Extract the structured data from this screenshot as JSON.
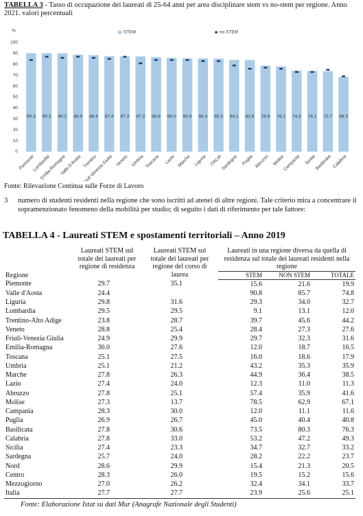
{
  "chart_data": {
    "type": "bar",
    "title_label": "TABELLA 3",
    "title": "- Tasso di occupazione dei laureati di 25-64 anni per area disciplinare stem vs no-stem per regione. Anno 2021. valori percentuali",
    "ylabel": "%",
    "categories": [
      "Piemonte",
      "Lombardia",
      "Emilia Romagna",
      "Valle D'Aosta",
      "Trentino",
      "Friuli Venezia Giulia",
      "Veneto",
      "Umbria",
      "Toscana",
      "Lazio",
      "Marche",
      "Liguria",
      "ITALIA",
      "Sardegna",
      "Puglia",
      "Abruzzo",
      "Molise",
      "Campania",
      "Sicilia",
      "Basilicata",
      "Calabria"
    ],
    "series": [
      {
        "name": "STEM",
        "color": "#a9cbe8",
        "mark": "bar",
        "values": [
          90.3,
          90.3,
          90.2,
          88.9,
          88.4,
          87.4,
          87.3,
          87.3,
          86.6,
          86.0,
          85.5,
          85.4,
          85.3,
          84.1,
          83.9,
          78.9,
          78.2,
          74.3,
          74.1,
          73.7,
          68.5
        ],
        "value_labels": [
          "90.3",
          "90.3",
          "90.2",
          "88.9",
          "88.4",
          "87.4",
          "87.3",
          "87.3",
          "86.6",
          "86.0",
          "85.5",
          "85.4",
          "85.3",
          "84.1",
          "83.9",
          "78.9",
          "78.2",
          "74.3",
          "74.1",
          "73.7",
          "68.5"
        ]
      },
      {
        "name": "no STEM",
        "color": "#1f3864",
        "mark": "dot",
        "values": [
          84,
          87,
          86,
          87,
          86,
          85,
          87,
          81,
          84,
          84,
          84,
          83,
          83,
          79,
          76,
          77,
          76,
          73,
          73,
          75,
          69
        ]
      }
    ],
    "ylim": [
      0,
      100
    ],
    "yticks": [
      0,
      10,
      20,
      30,
      40,
      50,
      60,
      70,
      80,
      90,
      100
    ],
    "grid": false
  },
  "chart_source": "Fonte: Rilevazione Continua sulle Forze di Lavoro",
  "footnote": {
    "marker": "3",
    "text": "numero di studenti residenti nella regione che sono iscritti ad atenei di altre regioni. Tale criterio mira a concentrare il sopramenzionato fenomeno della mobilità per studio; di seguito i dati di riferimento per tale fattore:"
  },
  "table": {
    "title": "TABELLA 4 - Laureati STEM e spostamenti territoriali – Anno 2019",
    "header": [
      "Regione",
      "Laureati STEM sul totale dei laureati per regione di residenza",
      "Laureati STEM sul totale dei laureati per regione del corso di laurea",
      "Laureati in una regione diversa da quella di residenza sul totale dei laureati residenti nella regione"
    ],
    "subheader": [
      "STEM",
      "NON STEM",
      "TOTALE"
    ],
    "rows": [
      [
        "Piemonte",
        "29.7",
        "35.1",
        "15.6",
        "21.6",
        "19.9"
      ],
      [
        "Valle d'Aosta",
        "24.4",
        "",
        "90.8",
        "85.7",
        "74.8"
      ],
      [
        "Liguria",
        "29.8",
        "31.6",
        "29.3",
        "34.0",
        "32.7"
      ],
      [
        "Lombardia",
        "29.5",
        "29.5",
        "9.1",
        "13.1",
        "12.0"
      ],
      [
        "Trentino-Alto Adige",
        "23.8",
        "28.7",
        "39.7",
        "45.6",
        "44.2"
      ],
      [
        "Veneto",
        "28.8",
        "25.4",
        "28.4",
        "27.3",
        "27.6"
      ],
      [
        "Friuli-Venezia Giulia",
        "24.9",
        "29.9",
        "29.7",
        "32.3",
        "31.6"
      ],
      [
        "Emilia-Romagna",
        "30.0",
        "27.6",
        "12.0",
        "18.7",
        "16.5"
      ],
      [
        "Toscana",
        "25.1",
        "27.5",
        "16.0",
        "18.6",
        "17.9"
      ],
      [
        "Umbria",
        "25.1",
        "21.2",
        "43.2",
        "35.3",
        "35.9"
      ],
      [
        "Marche",
        "27.8",
        "26.3",
        "44.9",
        "36.4",
        "38.5"
      ],
      [
        "Lazio",
        "27.4",
        "24.0",
        "12.3",
        "11.0",
        "11.3"
      ],
      [
        "Abruzzo",
        "27.8",
        "25.1",
        "57.4",
        "35.9",
        "41.6"
      ],
      [
        "Molise",
        "27.3",
        "13.7",
        "78.5",
        "62.9",
        "67.1"
      ],
      [
        "Campania",
        "28.3",
        "30.0",
        "12.0",
        "11.1",
        "11.6"
      ],
      [
        "Puglia",
        "26.9",
        "26.7",
        "45.0",
        "40.4",
        "40.8"
      ],
      [
        "Basilicata",
        "27.8",
        "30.6",
        "73.5",
        "80.3",
        "76.3"
      ],
      [
        "Calabria",
        "27.8",
        "33.0",
        "53.2",
        "47.2",
        "49.3"
      ],
      [
        "Sicilia",
        "27.4",
        "23.3",
        "34.7",
        "32.7",
        "33.2"
      ],
      [
        "Sardegna",
        "25.7",
        "24.0",
        "28.2",
        "22.2",
        "23.7"
      ],
      [
        "Nord",
        "28.6",
        "29.9",
        "15.4",
        "21.3",
        "20.5"
      ],
      [
        "Centro",
        "28.3",
        "26.0",
        "19.5",
        "15.2",
        "15.6"
      ],
      [
        "Mezzogiorno",
        "27.0",
        "26.2",
        "32.4",
        "34.1",
        "33.7"
      ],
      [
        "Italia",
        "27.7",
        "27.7",
        "23.9",
        "25.6",
        "25.1"
      ]
    ],
    "source": "Fonte: Elaborazione Istat su dati Mur (Anagrafe Nazionale degli Studenti)"
  }
}
